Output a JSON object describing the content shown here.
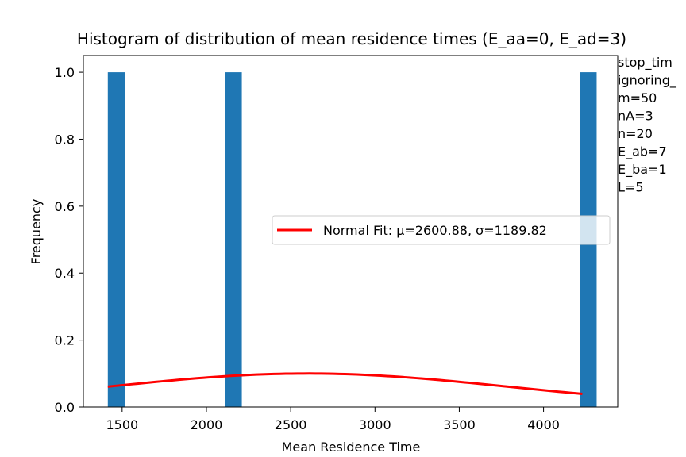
{
  "chart_data": {
    "type": "bar",
    "title": "Histogram of distribution of mean residence times (E_aa=0, E_ad=3)",
    "xlabel": "Mean Residence Time",
    "ylabel": "Frequency",
    "xlim": [
      1270,
      4440
    ],
    "ylim": [
      0,
      1.05
    ],
    "xticks": [
      1500,
      2000,
      2500,
      3000,
      3500,
      4000
    ],
    "yticks": [
      0.0,
      0.2,
      0.4,
      0.6,
      0.8,
      1.0
    ],
    "xtick_labels": [
      "1500",
      "2000",
      "2500",
      "3000",
      "3500",
      "4000"
    ],
    "ytick_labels": [
      "0.0",
      "0.2",
      "0.4",
      "0.6",
      "0.8",
      "1.0"
    ],
    "bars": [
      {
        "x_start": 1415,
        "x_end": 1515,
        "value": 1.0
      },
      {
        "x_start": 2110,
        "x_end": 2210,
        "value": 1.0
      },
      {
        "x_start": 4215,
        "x_end": 4315,
        "value": 1.0
      }
    ],
    "bar_color": "#1f77b4",
    "fit": {
      "name": "Normal Fit: μ=2600.88, σ=1189.82",
      "mu": 2600.88,
      "sigma": 1189.82,
      "x_range": [
        1415,
        4230
      ],
      "peak_value": 0.1,
      "color": "#ff0000"
    },
    "legend": {
      "location": "center-right",
      "label": "Normal Fit: μ=2600.88, σ=1189.82"
    },
    "grid": false,
    "side_text": [
      "stop_tim",
      "ignoring_",
      "m=50",
      "nA=3",
      "n=20",
      "E_ab=7",
      "E_ba=1",
      "L=5"
    ]
  }
}
